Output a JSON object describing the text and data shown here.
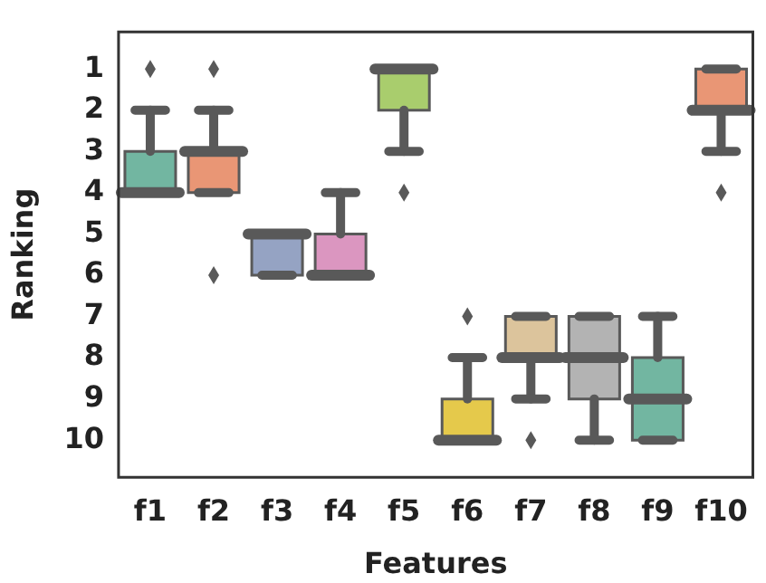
{
  "chart_data": {
    "type": "box",
    "xlabel": "Features",
    "ylabel": "Ranking",
    "categories": [
      "f1",
      "f2",
      "f3",
      "f4",
      "f5",
      "f6",
      "f7",
      "f8",
      "f9",
      "f10"
    ],
    "colors": [
      "#72b6a1",
      "#e99675",
      "#95a3c3",
      "#db96c0",
      "#a9cd6d",
      "#e5c94b",
      "#dcc49c",
      "#b3b3b3",
      "#72b6a1",
      "#e99675"
    ],
    "boxes": [
      {
        "low": 2,
        "q1": 3,
        "median": 4,
        "q3": 4,
        "high": 4,
        "outliers": [
          1
        ]
      },
      {
        "low": 2,
        "q1": 3,
        "median": 3,
        "q3": 4,
        "high": 4,
        "outliers": [
          1,
          6
        ]
      },
      {
        "low": 5,
        "q1": 5,
        "median": 5,
        "q3": 6,
        "high": 6
      },
      {
        "low": 4,
        "q1": 5,
        "median": 6,
        "q3": 6,
        "high": 6
      },
      {
        "low": 1,
        "q1": 1,
        "median": 1,
        "q3": 2,
        "high": 3,
        "outliers": [
          4
        ]
      },
      {
        "low": 8,
        "q1": 9,
        "median": 10,
        "q3": 10,
        "high": 10,
        "outliers": [
          7
        ]
      },
      {
        "low": 7,
        "q1": 7,
        "median": 8,
        "q3": 8,
        "high": 9,
        "outliers": [
          10
        ]
      },
      {
        "low": 7,
        "q1": 7,
        "median": 8,
        "q3": 9,
        "high": 10
      },
      {
        "low": 7,
        "q1": 8,
        "median": 9,
        "q3": 10,
        "high": 10
      },
      {
        "low": 1,
        "q1": 1,
        "median": 2,
        "q3": 2,
        "high": 3,
        "outliers": [
          4
        ]
      }
    ],
    "ylim": [
      10.9,
      0.1
    ],
    "yticks": [
      1,
      2,
      3,
      4,
      5,
      6,
      7,
      8,
      9,
      10
    ],
    "grid": false
  }
}
